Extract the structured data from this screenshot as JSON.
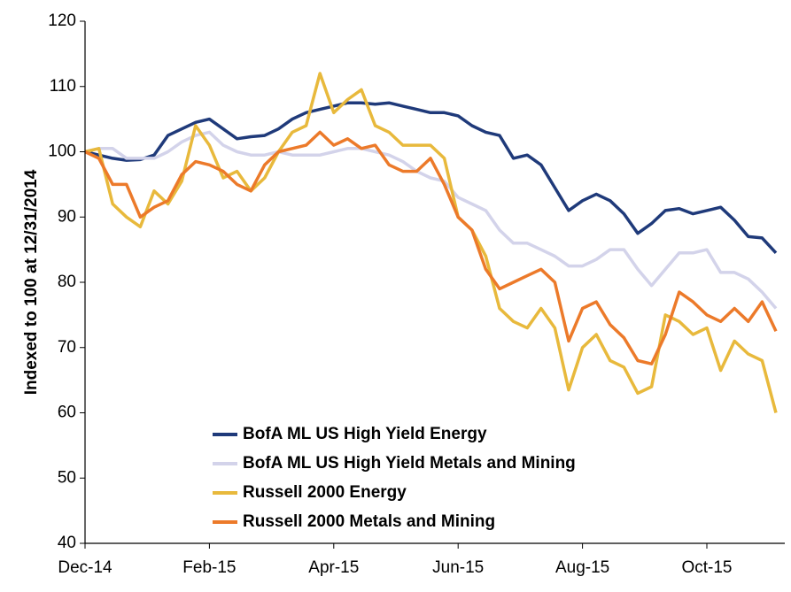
{
  "chart_data": {
    "type": "line",
    "y_label": "Indexed to 100 at 12/31/2014",
    "categories": [
      "Dec-14",
      null,
      null,
      null,
      null,
      null,
      null,
      null,
      null,
      "Feb-15",
      null,
      null,
      null,
      null,
      null,
      null,
      null,
      null,
      "Apr-15",
      null,
      null,
      null,
      null,
      null,
      null,
      null,
      null,
      "Jun-15",
      null,
      null,
      null,
      null,
      null,
      null,
      null,
      null,
      "Aug-15",
      null,
      null,
      null,
      null,
      null,
      null,
      null,
      null,
      "Oct-15",
      null,
      null,
      null,
      null,
      null
    ],
    "series": [
      {
        "name": "BofA ML US High Yield Energy",
        "color": "#1f3a7a",
        "values": [
          100,
          99.5,
          99,
          98.7,
          98.8,
          99.5,
          102.5,
          103.5,
          104.5,
          105,
          103.5,
          102,
          102.3,
          102.5,
          103.5,
          105,
          106,
          106.5,
          107,
          107.5,
          107.5,
          107.3,
          107.5,
          107,
          106.5,
          106,
          106,
          105.5,
          104,
          103,
          102.5,
          99,
          99.5,
          98,
          94.5,
          91,
          92.5,
          93.5,
          92.5,
          90.5,
          87.5,
          89,
          91,
          91.3,
          90.5,
          91,
          91.5,
          89.5,
          87,
          86.8,
          84.5
        ]
      },
      {
        "name": "BofA ML US High Yield Metals and Mining",
        "color": "#d3d3ea",
        "values": [
          100,
          100.5,
          100.5,
          99,
          99,
          99,
          100,
          101.5,
          102.5,
          103,
          101,
          100,
          99.5,
          99.5,
          100,
          99.5,
          99.5,
          99.5,
          100,
          100.5,
          100.5,
          100,
          99.5,
          98.5,
          97,
          96,
          95.5,
          93,
          92,
          91,
          88,
          86,
          86,
          85,
          84,
          82.5,
          82.5,
          83.5,
          85,
          85,
          82,
          79.5,
          82,
          84.5,
          84.5,
          85,
          81.5,
          81.5,
          80.5,
          78.5,
          76
        ]
      },
      {
        "name": "Russell 2000 Energy",
        "color": "#e8b93c",
        "values": [
          100,
          100.5,
          92,
          90,
          88.5,
          94,
          92,
          95.5,
          104,
          101,
          96,
          97,
          94,
          96,
          100,
          103,
          104,
          112,
          106,
          108,
          109.5,
          104,
          103,
          101,
          101,
          101,
          99,
          90,
          88,
          84,
          76,
          74,
          73,
          76,
          73,
          63.5,
          70,
          72,
          68,
          67,
          63,
          64,
          75,
          74,
          72,
          73,
          66.5,
          71,
          69,
          68,
          60
        ]
      },
      {
        "name": "Russell 2000 Metals and Mining",
        "color": "#ec7a2a",
        "values": [
          100,
          99,
          95,
          95,
          90,
          91.5,
          92.5,
          96.5,
          98.5,
          98,
          97,
          95,
          94,
          98,
          100,
          100.5,
          101,
          103,
          101,
          102,
          100.5,
          101,
          98,
          97,
          97,
          99,
          95,
          90,
          88,
          82,
          79,
          80,
          81,
          82,
          80,
          71,
          76,
          77,
          73.5,
          71.5,
          68,
          67.5,
          72,
          78.5,
          77,
          75,
          74,
          76,
          74,
          77,
          72.5
        ]
      }
    ],
    "ylim": [
      40,
      120
    ],
    "yticks": [
      40,
      50,
      60,
      70,
      80,
      90,
      100,
      110,
      120
    ],
    "grid": false,
    "legend": "lower left"
  }
}
